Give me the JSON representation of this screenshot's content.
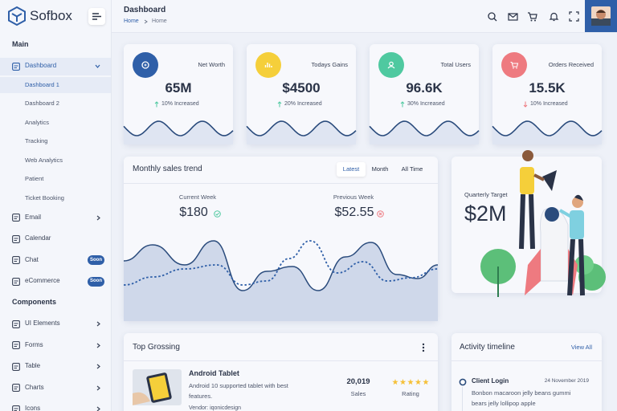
{
  "brand": "Sofbox",
  "header": {
    "title": "Dashboard",
    "breadcrumb": [
      "Home",
      "Home"
    ]
  },
  "sidebar": {
    "items": [
      {
        "kind": "heading",
        "label": "Main"
      },
      {
        "kind": "item",
        "label": "Dashboard",
        "active": true,
        "chevron": "down"
      },
      {
        "kind": "sub",
        "label": "Dashboard 1",
        "active": true
      },
      {
        "kind": "sub",
        "label": "Dashboard 2"
      },
      {
        "kind": "sub",
        "label": "Analytics"
      },
      {
        "kind": "sub",
        "label": "Tracking"
      },
      {
        "kind": "sub",
        "label": "Web Analytics"
      },
      {
        "kind": "sub",
        "label": "Patient"
      },
      {
        "kind": "sub",
        "label": "Ticket Booking"
      },
      {
        "kind": "item",
        "label": "Email",
        "chevron": "right"
      },
      {
        "kind": "item",
        "label": "Calendar"
      },
      {
        "kind": "item",
        "label": "Chat",
        "badge": "Soon"
      },
      {
        "kind": "item",
        "label": "eCommerce",
        "badge": "Soon"
      },
      {
        "kind": "heading",
        "label": "Components"
      },
      {
        "kind": "item",
        "label": "UI Elements",
        "chevron": "right"
      },
      {
        "kind": "item",
        "label": "Forms",
        "chevron": "right"
      },
      {
        "kind": "item",
        "label": "Table",
        "chevron": "right"
      },
      {
        "kind": "item",
        "label": "Charts",
        "chevron": "right"
      },
      {
        "kind": "item",
        "label": "Icons",
        "chevron": "right"
      }
    ]
  },
  "stats": [
    {
      "label": "Net Worth",
      "value": "65M",
      "change": "10% Increased",
      "direction": "up",
      "color": "#2f5fa8"
    },
    {
      "label": "Todays Gains",
      "value": "$4500",
      "change": "20% Increased",
      "direction": "up",
      "color": "#f5cf3a"
    },
    {
      "label": "Total Users",
      "value": "96.6K",
      "change": "30% Increased",
      "direction": "up",
      "color": "#4fc9a0"
    },
    {
      "label": "Orders Received",
      "value": "15.5K",
      "change": "10% Increased",
      "direction": "down",
      "color": "#ee7a80"
    }
  ],
  "sales_trend": {
    "title": "Monthly sales trend",
    "tabs": [
      "Latest",
      "Month",
      "All Time"
    ],
    "current": {
      "label": "Current Week",
      "value": "$180"
    },
    "previous": {
      "label": "Previous Week",
      "value": "$52.55"
    }
  },
  "quarterly": {
    "label": "Quarterly Target",
    "value": "$2M"
  },
  "top_grossing": {
    "title": "Top Grossing",
    "product": {
      "name": "Android Tablet",
      "description": [
        "Android 10 supported tablet with best",
        "features."
      ],
      "vendor": "Vendor: iqonicdesign",
      "sales": "20,019",
      "sales_label": "Sales",
      "rating_label": "Rating"
    }
  },
  "activity": {
    "title": "Activity timeline",
    "link": "View All",
    "entry": {
      "title": "Client Login",
      "date": "24 November 2019",
      "text": [
        "Bonbon macaroon jelly beans gummi",
        "bears jelly lollipop apple"
      ]
    }
  }
}
